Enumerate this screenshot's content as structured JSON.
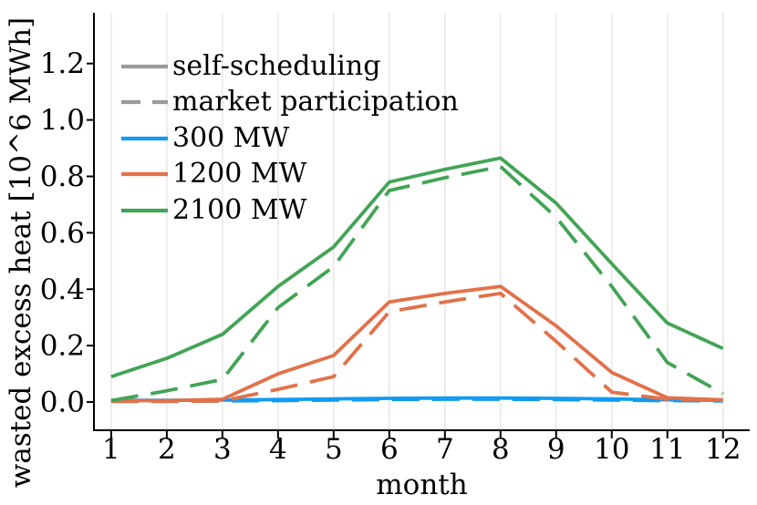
{
  "figure": {
    "background": "#ffffff"
  },
  "colors": {
    "blue": "#119bf2",
    "orange": "#e2714a",
    "green": "#42a456",
    "legend_gray": "#9a9a9a",
    "gridline": "#e4e4e4",
    "axis": "#000000"
  },
  "chart_data": {
    "type": "line",
    "title": "",
    "xlabel": "month",
    "ylabel": "wasted excess heat [10^6 MWh]",
    "x": [
      1,
      2,
      3,
      4,
      5,
      6,
      7,
      8,
      9,
      10,
      11,
      12
    ],
    "xtick_labels": [
      "1",
      "2",
      "3",
      "4",
      "5",
      "6",
      "7",
      "8",
      "9",
      "10",
      "11",
      "12"
    ],
    "yticks": [
      0.0,
      0.2,
      0.4,
      0.6,
      0.8,
      1.0,
      1.2
    ],
    "ytick_labels": [
      "0.0",
      "0.2",
      "0.4",
      "0.6",
      "0.8",
      "1.0",
      "1.2"
    ],
    "xlim": [
      0.69,
      12.48
    ],
    "ylim": [
      -0.1,
      1.38
    ],
    "grid": "x-only",
    "legend_position": "top-left",
    "legend": {
      "entries": [
        {
          "label": "self-scheduling",
          "color": "#9a9a9a",
          "dashed": false
        },
        {
          "label": "market participation",
          "color": "#9a9a9a",
          "dashed": true
        },
        {
          "label": "300 MW",
          "color": "#119bf2",
          "dashed": false
        },
        {
          "label": "1200 MW",
          "color": "#e2714a",
          "dashed": false
        },
        {
          "label": "2100 MW",
          "color": "#42a456",
          "dashed": false
        }
      ]
    },
    "series": [
      {
        "name": "300 MW market participation",
        "capacity": "300 MW",
        "mode": "market participation",
        "style": "dashed",
        "color": "#119bf2",
        "values": [
          0.003,
          0.003,
          0.004,
          0.005,
          0.007,
          0.009,
          0.01,
          0.01,
          0.009,
          0.007,
          0.005,
          0.004
        ]
      },
      {
        "name": "300 MW self-scheduling",
        "capacity": "300 MW",
        "mode": "self-scheduling",
        "style": "solid",
        "color": "#119bf2",
        "values": [
          0.006,
          0.006,
          0.007,
          0.009,
          0.011,
          0.013,
          0.014,
          0.014,
          0.013,
          0.011,
          0.008,
          0.006
        ]
      },
      {
        "name": "1200 MW self-scheduling",
        "capacity": "1200 MW",
        "mode": "self-scheduling",
        "style": "solid",
        "color": "#e2714a",
        "values": [
          0.005,
          0.005,
          0.01,
          0.1,
          0.165,
          0.355,
          0.385,
          0.41,
          0.27,
          0.105,
          0.015,
          0.008
        ]
      },
      {
        "name": "1200 MW market participation",
        "capacity": "1200 MW",
        "mode": "market participation",
        "style": "dashed",
        "color": "#e2714a",
        "values": [
          0.002,
          0.002,
          0.004,
          0.045,
          0.09,
          0.32,
          0.355,
          0.385,
          0.215,
          0.035,
          0.01,
          0.006
        ]
      },
      {
        "name": "2100 MW self-scheduling",
        "capacity": "2100 MW",
        "mode": "self-scheduling",
        "style": "solid",
        "color": "#42a456",
        "values": [
          0.09,
          0.155,
          0.24,
          0.41,
          0.55,
          0.78,
          0.825,
          0.865,
          0.705,
          0.49,
          0.28,
          0.19
        ]
      },
      {
        "name": "2100 MW market participation",
        "capacity": "2100 MW",
        "mode": "market participation",
        "style": "dashed",
        "color": "#42a456",
        "values": [
          0.005,
          0.04,
          0.08,
          0.335,
          0.48,
          0.75,
          0.795,
          0.835,
          0.655,
          0.41,
          0.14,
          0.03
        ]
      }
    ]
  }
}
